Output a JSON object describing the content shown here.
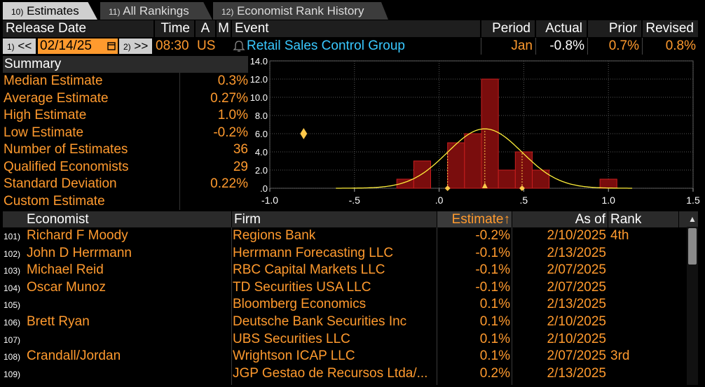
{
  "tabs": [
    {
      "num": "10)",
      "label": "Estimates",
      "active": true
    },
    {
      "num": "11)",
      "label": "All Rankings",
      "active": false
    },
    {
      "num": "12)",
      "label": "Economist Rank History",
      "active": false
    }
  ],
  "header": {
    "release_date": "Release Date",
    "time": "Time",
    "a": "A",
    "m": "M",
    "event": "Event",
    "period": "Period",
    "actual": "Actual",
    "prior": "Prior",
    "revised": "Revised"
  },
  "release": {
    "prev_num": "1)",
    "prev_glyph": "<<",
    "date": "02/14/25",
    "next_num": "2)",
    "next_glyph": ">>",
    "time": "08:30",
    "country": "US",
    "event": "Retail Sales Control Group",
    "period": "Jan",
    "actual": "-0.8%",
    "prior": "0.7%",
    "revised": "0.8%"
  },
  "summary": {
    "title": "Summary",
    "rows": [
      {
        "label": "Median Estimate",
        "value": "0.3%"
      },
      {
        "label": "Average Estimate",
        "value": "0.27%"
      },
      {
        "label": "High Estimate",
        "value": "1.0%"
      },
      {
        "label": "Low Estimate",
        "value": "-0.2%"
      },
      {
        "label": "Number of Estimates",
        "value": "36"
      },
      {
        "label": "Qualified Economists",
        "value": "29"
      },
      {
        "label": "Standard Deviation",
        "value": "0.22%"
      },
      {
        "label": "Custom Estimate",
        "value": ""
      }
    ]
  },
  "colors": {
    "orange": "#ff9a2e",
    "cyan": "#39c8ff",
    "bar_fill": "#7a0d0d",
    "bar_edge": "#c81e1e",
    "curve": "#ffef3a",
    "marker": "#ffc94a"
  },
  "chart_data": {
    "type": "bar",
    "x_ticks": [
      "-1.0",
      "-.5",
      ".0",
      ".5",
      "1.0",
      "1.5"
    ],
    "y_ticks": [
      "14.0",
      "12.0",
      "10.0",
      "8.0",
      "6.0",
      "4.0",
      "2.0",
      ".0"
    ],
    "xlim": [
      -1.0,
      1.5
    ],
    "ylim": [
      0,
      14
    ],
    "bin_width": 0.1,
    "bins": [
      {
        "x": -0.2,
        "value": 1
      },
      {
        "x": -0.1,
        "value": 3
      },
      {
        "x": 0.0,
        "value": 0
      },
      {
        "x": 0.1,
        "value": 5
      },
      {
        "x": 0.2,
        "value": 6
      },
      {
        "x": 0.3,
        "value": 12
      },
      {
        "x": 0.4,
        "value": 2
      },
      {
        "x": 0.5,
        "value": 4
      },
      {
        "x": 0.6,
        "value": 2
      },
      {
        "x": 1.0,
        "value": 1
      }
    ],
    "normal_mean": 0.27,
    "normal_sd": 0.22,
    "actual_marker": {
      "x": -0.8,
      "y": 6.0
    },
    "axis_markers": [
      0.05,
      0.27,
      0.49
    ],
    "grid": true
  },
  "table": {
    "columns": {
      "economist": "Economist",
      "firm": "Firm",
      "estimate": "Estimate",
      "as_of": "As of",
      "rank": "Rank"
    },
    "sort_glyph": "↑",
    "scroll_up_glyph": "▲",
    "rows": [
      {
        "num": "101)",
        "economist": "Richard F Moody",
        "firm": "Regions Bank",
        "estimate": "-0.2%",
        "as_of": "2/10/2025",
        "rank": "4th"
      },
      {
        "num": "102)",
        "economist": "John D Herrmann",
        "firm": "Herrmann Forecasting LLC",
        "estimate": "-0.1%",
        "as_of": "2/13/2025",
        "rank": ""
      },
      {
        "num": "103)",
        "economist": "Michael Reid",
        "firm": "RBC Capital Markets LLC",
        "estimate": "-0.1%",
        "as_of": "2/07/2025",
        "rank": ""
      },
      {
        "num": "104)",
        "economist": "Oscar Munoz",
        "firm": "TD Securities USA LLC",
        "estimate": "-0.1%",
        "as_of": "2/07/2025",
        "rank": ""
      },
      {
        "num": "105)",
        "economist": "",
        "firm": "Bloomberg Economics",
        "estimate": "0.1%",
        "as_of": "2/13/2025",
        "rank": ""
      },
      {
        "num": "106)",
        "economist": "Brett Ryan",
        "firm": "Deutsche Bank Securities Inc",
        "estimate": "0.1%",
        "as_of": "2/10/2025",
        "rank": ""
      },
      {
        "num": "107)",
        "economist": "",
        "firm": "UBS Securities LLC",
        "estimate": "0.1%",
        "as_of": "2/10/2025",
        "rank": ""
      },
      {
        "num": "108)",
        "economist": "Crandall/Jordan",
        "firm": "Wrightson ICAP LLC",
        "estimate": "0.1%",
        "as_of": "2/07/2025",
        "rank": "3rd"
      },
      {
        "num": "109)",
        "economist": "",
        "firm": "JGP Gestao de Recursos Ltda/...",
        "estimate": "0.2%",
        "as_of": "2/13/2025",
        "rank": ""
      }
    ]
  }
}
